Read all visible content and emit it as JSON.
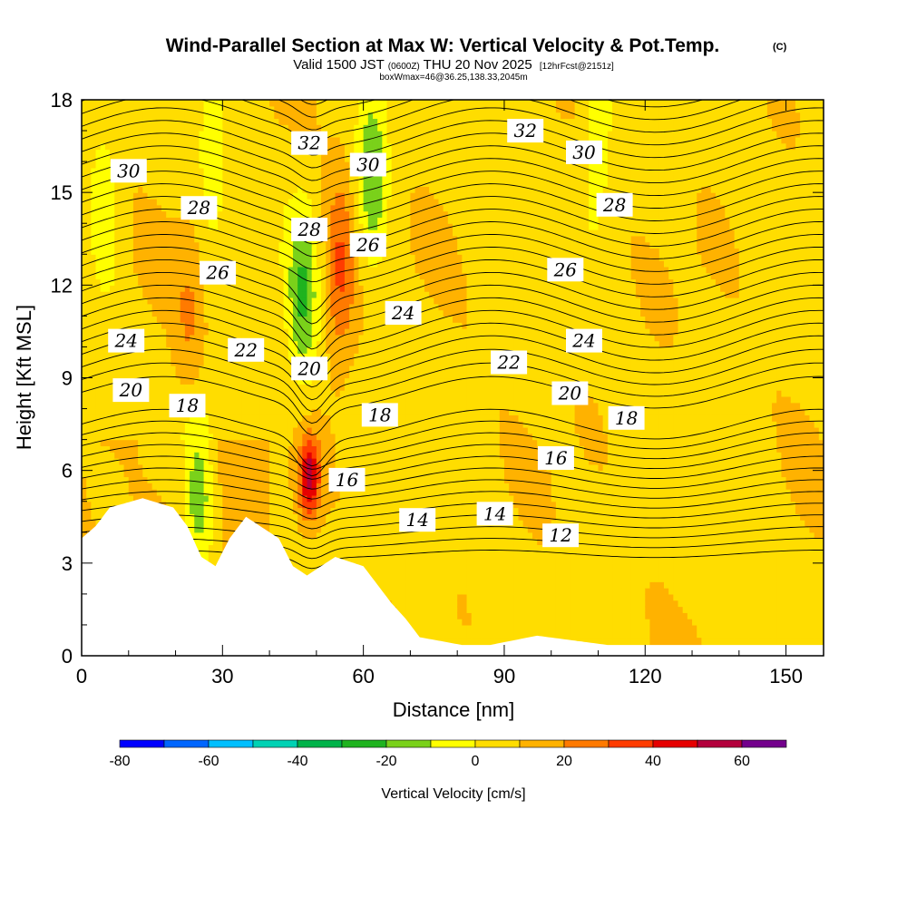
{
  "chart_data": {
    "type": "filled-contour",
    "title": "Wind-Parallel Section at Max W: Vertical Velocity & Pot.Temp.",
    "title_mark": "(C)",
    "subtitle_valid": "Valid 1500 JST",
    "subtitle_utc": "(0600Z)",
    "subtitle_date": "THU 20 Nov 2025",
    "subtitle_fcst": "[12hrFcst@2151z]",
    "subtitle_box": "boxWmax=46@36.25,138.33,2045m",
    "xlabel": "Distance [nm]",
    "ylabel": "Height [Kft MSL]",
    "xlim": [
      0,
      158
    ],
    "ylim": [
      0,
      18
    ],
    "x_ticks": [
      0,
      30,
      60,
      90,
      120,
      150
    ],
    "y_ticks": [
      0,
      3,
      6,
      9,
      12,
      15,
      18
    ],
    "colorbar": {
      "label": "Vertical Velocity [cm/s]",
      "tick_values": [
        -80,
        -60,
        -40,
        -20,
        0,
        20,
        40,
        60
      ],
      "bins": [
        -80,
        -70,
        -60,
        -50,
        -40,
        -30,
        -20,
        -10,
        0,
        10,
        20,
        30,
        40,
        50,
        60,
        70
      ],
      "colors": [
        "#0000ff",
        "#0066ff",
        "#00bfff",
        "#00d2b4",
        "#00b34a",
        "#1fb31f",
        "#7ad11a",
        "#ffff00",
        "#ffdd00",
        "#ffb200",
        "#ff7a00",
        "#ff3c00",
        "#e60000",
        "#b3003c",
        "#73008c"
      ]
    },
    "potential_temperature_contour_labels": [
      {
        "value": "30",
        "x": 10,
        "z": 15.7
      },
      {
        "value": "28",
        "x": 25,
        "z": 14.5
      },
      {
        "value": "26",
        "x": 29,
        "z": 12.4
      },
      {
        "value": "24",
        "x": 9.5,
        "z": 10.2
      },
      {
        "value": "22",
        "x": 35,
        "z": 9.9
      },
      {
        "value": "20",
        "x": 10.5,
        "z": 8.6
      },
      {
        "value": "18",
        "x": 22.5,
        "z": 8.1
      },
      {
        "value": "32",
        "x": 48.5,
        "z": 16.6
      },
      {
        "value": "28",
        "x": 48.5,
        "z": 13.8
      },
      {
        "value": "20",
        "x": 48.5,
        "z": 9.3
      },
      {
        "value": "30",
        "x": 61,
        "z": 15.9
      },
      {
        "value": "26",
        "x": 61,
        "z": 13.3
      },
      {
        "value": "24",
        "x": 68.5,
        "z": 11.1
      },
      {
        "value": "18",
        "x": 63.5,
        "z": 7.8
      },
      {
        "value": "16",
        "x": 56.5,
        "z": 5.7
      },
      {
        "value": "14",
        "x": 71.5,
        "z": 4.4
      },
      {
        "value": "14",
        "x": 88,
        "z": 4.6
      },
      {
        "value": "22",
        "x": 91,
        "z": 9.5
      },
      {
        "value": "32",
        "x": 94.5,
        "z": 17.0
      },
      {
        "value": "30",
        "x": 107,
        "z": 16.3
      },
      {
        "value": "28",
        "x": 113.5,
        "z": 14.6
      },
      {
        "value": "26",
        "x": 103,
        "z": 12.5
      },
      {
        "value": "24",
        "x": 107,
        "z": 10.2
      },
      {
        "value": "20",
        "x": 104,
        "z": 8.5
      },
      {
        "value": "18",
        "x": 116,
        "z": 7.7
      },
      {
        "value": "16",
        "x": 101,
        "z": 6.4
      },
      {
        "value": "12",
        "x": 102,
        "z": 3.9
      }
    ],
    "vertical_velocity_features": [
      {
        "kind": "updraft-max",
        "x": 48.5,
        "z": 5.8,
        "w_cm_s": 46
      },
      {
        "kind": "updraft",
        "x": 55,
        "z": 12.5,
        "w_cm_s": 25
      },
      {
        "kind": "updraft",
        "x": 23,
        "z": 11,
        "w_cm_s": 12
      },
      {
        "kind": "downdraft",
        "x": 47,
        "z": 11.5,
        "w_cm_s": -25
      },
      {
        "kind": "downdraft",
        "x": 62,
        "z": 15.5,
        "w_cm_s": -25
      },
      {
        "kind": "downdraft",
        "x": 5,
        "z": 14,
        "w_cm_s": -15
      },
      {
        "kind": "downdraft",
        "x": 28,
        "z": 16.5,
        "w_cm_s": -15
      },
      {
        "kind": "downdraft",
        "x": 25,
        "z": 5.3,
        "w_cm_s": -25
      },
      {
        "kind": "downdraft",
        "x": 110,
        "z": 17,
        "w_cm_s": -15
      }
    ],
    "terrain_height_kft": [
      {
        "x": 0,
        "z": 3.8
      },
      {
        "x": 3,
        "z": 4.2
      },
      {
        "x": 6,
        "z": 4.8
      },
      {
        "x": 13,
        "z": 5.1
      },
      {
        "x": 19.5,
        "z": 4.8
      },
      {
        "x": 22.5,
        "z": 4.2
      },
      {
        "x": 25.5,
        "z": 3.2
      },
      {
        "x": 28.5,
        "z": 2.9
      },
      {
        "x": 31.5,
        "z": 3.8
      },
      {
        "x": 35,
        "z": 4.5
      },
      {
        "x": 42,
        "z": 3.8
      },
      {
        "x": 45,
        "z": 2.9
      },
      {
        "x": 48,
        "z": 2.6
      },
      {
        "x": 54,
        "z": 3.2
      },
      {
        "x": 60,
        "z": 2.9
      },
      {
        "x": 63,
        "z": 2.3
      },
      {
        "x": 66,
        "z": 1.7
      },
      {
        "x": 69,
        "z": 1.2
      },
      {
        "x": 72,
        "z": 0.6
      },
      {
        "x": 81,
        "z": 0.35
      },
      {
        "x": 87,
        "z": 0.35
      },
      {
        "x": 97,
        "z": 0.65
      },
      {
        "x": 112,
        "z": 0.35
      },
      {
        "x": 158,
        "z": 0.35
      }
    ]
  }
}
